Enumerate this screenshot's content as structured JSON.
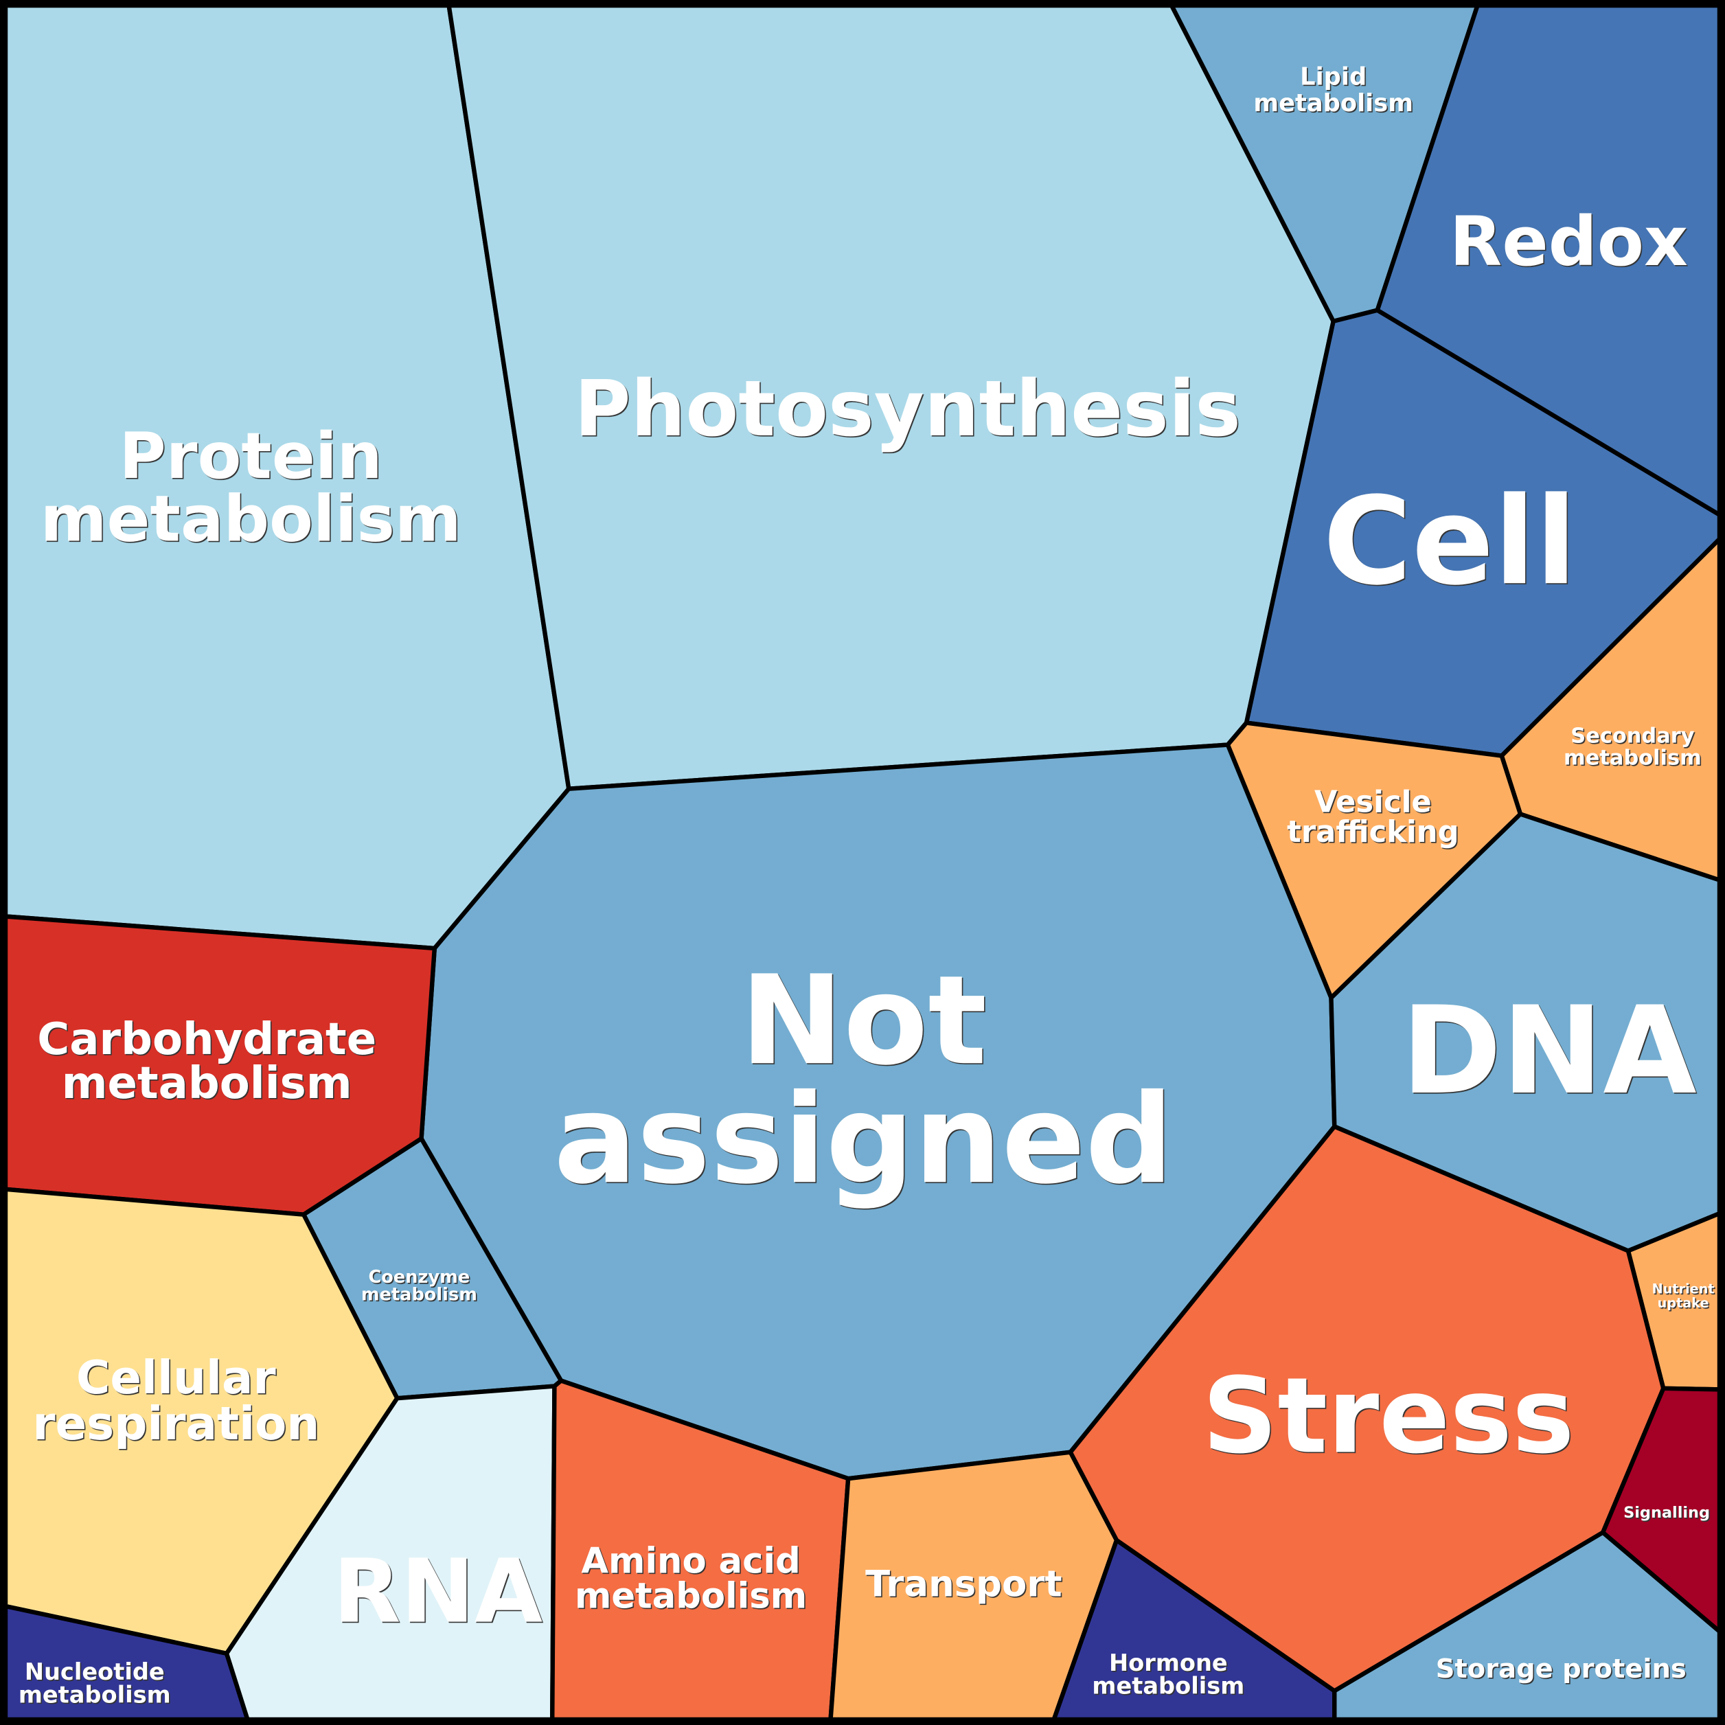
{
  "palette": {
    "light_blue": "#abd9e9",
    "mid_blue": "#74add1",
    "dark_blue": "#4575b4",
    "orange": "#fdae61",
    "red_orange": "#f46d43",
    "red": "#d73027",
    "yellow": "#fee090",
    "pale_blue": "#e0f3f8",
    "navy": "#313695",
    "dark_red": "#a50026"
  },
  "cells": [
    {
      "id": "protein-metabolism",
      "lines": [
        "Protein",
        "metabolism"
      ],
      "color": "#abd9e9"
    },
    {
      "id": "photosynthesis",
      "lines": [
        "Photosynthesis"
      ],
      "color": "#abd9e9"
    },
    {
      "id": "lipid-metabolism",
      "lines": [
        "Lipid",
        "metabolism"
      ],
      "color": "#74add1"
    },
    {
      "id": "redox",
      "lines": [
        "Redox"
      ],
      "color": "#4575b4"
    },
    {
      "id": "cell",
      "lines": [
        "Cell"
      ],
      "color": "#4575b4"
    },
    {
      "id": "secondary-metabolism",
      "lines": [
        "Secondary",
        "metabolism"
      ],
      "color": "#fdae61"
    },
    {
      "id": "vesicle-trafficking",
      "lines": [
        "Vesicle",
        "trafficking"
      ],
      "color": "#fdae61"
    },
    {
      "id": "not-assigned",
      "lines": [
        "Not",
        "assigned"
      ],
      "color": "#74add1"
    },
    {
      "id": "dna",
      "lines": [
        "DNA"
      ],
      "color": "#74add1"
    },
    {
      "id": "carbohydrate-metabolism",
      "lines": [
        "Carbohydrate",
        "metabolism"
      ],
      "color": "#d73027"
    },
    {
      "id": "coenzyme-metabolism",
      "lines": [
        "Coenzyme",
        "metabolism"
      ],
      "color": "#74add1"
    },
    {
      "id": "cellular-respiration",
      "lines": [
        "Cellular",
        "respiration"
      ],
      "color": "#fee090"
    },
    {
      "id": "nucleotide-metabolism",
      "lines": [
        "Nucleotide",
        "metabolism"
      ],
      "color": "#313695"
    },
    {
      "id": "rna",
      "lines": [
        "RNA"
      ],
      "color": "#e0f3f8"
    },
    {
      "id": "amino-acid-metabolism",
      "lines": [
        "Amino acid",
        "metabolism"
      ],
      "color": "#f46d43"
    },
    {
      "id": "transport",
      "lines": [
        "Transport"
      ],
      "color": "#fdae61"
    },
    {
      "id": "hormone-metabolism",
      "lines": [
        "Hormone",
        "metabolism"
      ],
      "color": "#313695"
    },
    {
      "id": "stress",
      "lines": [
        "Stress"
      ],
      "color": "#f46d43"
    },
    {
      "id": "nutrient-uptake",
      "lines": [
        "Nutrient",
        "uptake"
      ],
      "color": "#fdae61"
    },
    {
      "id": "signalling",
      "lines": [
        "Signalling"
      ],
      "color": "#a50026"
    },
    {
      "id": "storage-proteins",
      "lines": [
        "Storage proteins"
      ],
      "color": "#74add1"
    }
  ]
}
